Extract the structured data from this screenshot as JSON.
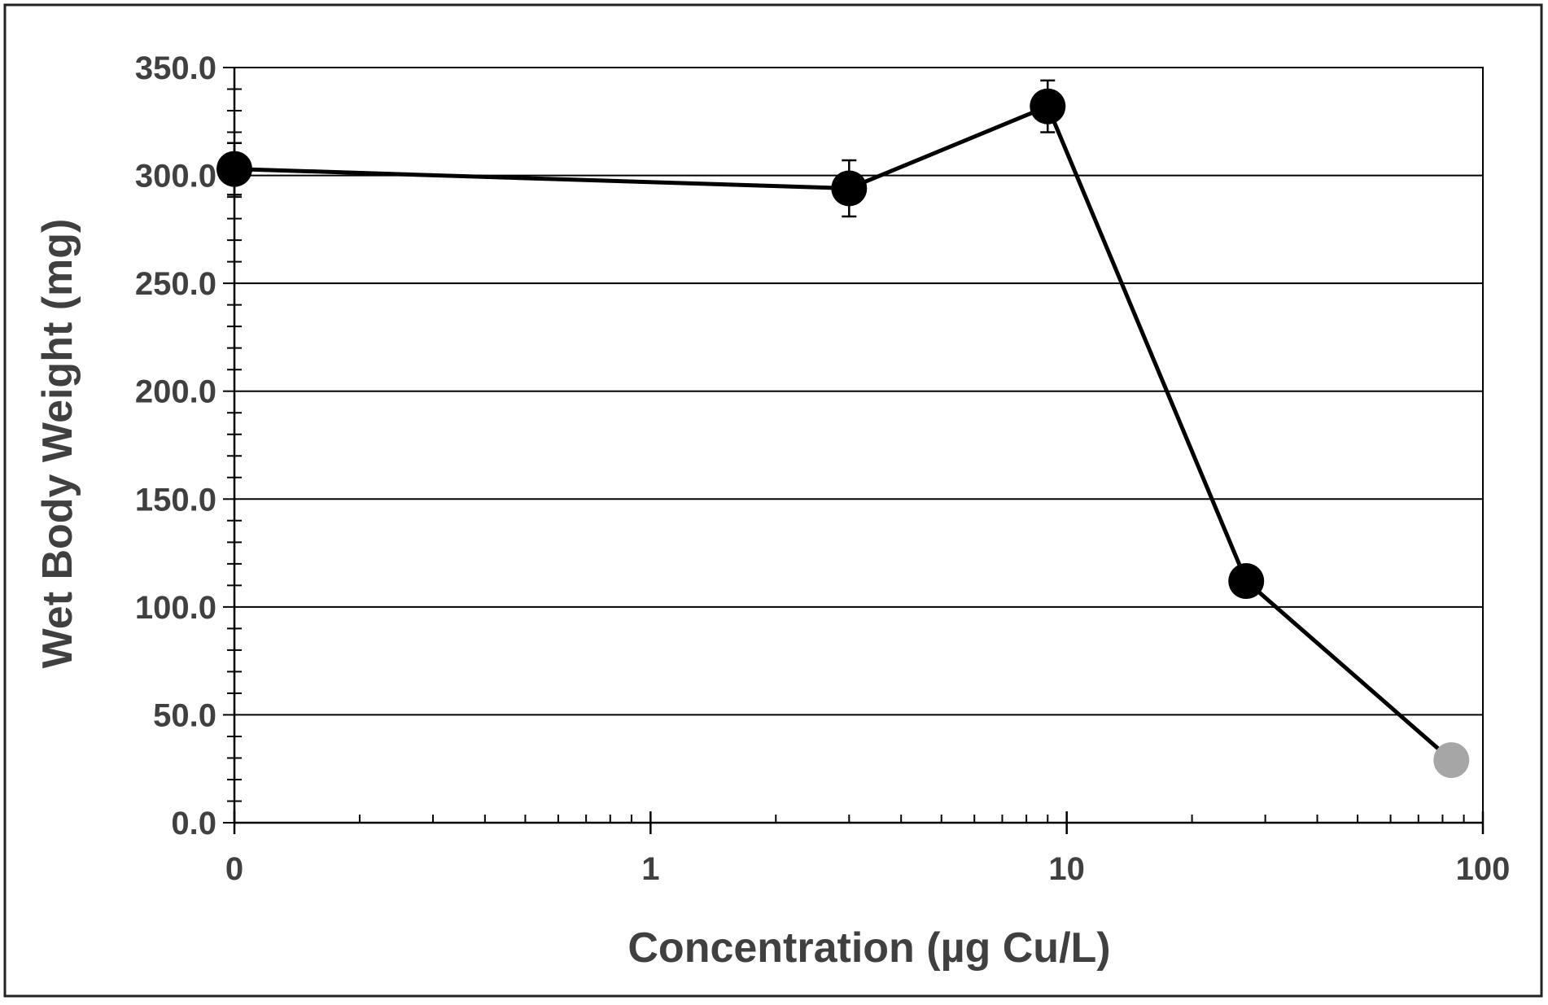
{
  "chart_data": {
    "type": "scatter",
    "title": "",
    "xlabel": "Concentration (µg Cu/L)",
    "ylabel": "Wet Body Weight (mg)",
    "x_scale": "log",
    "xlim": [
      0.1,
      100
    ],
    "ylim": [
      0,
      350
    ],
    "x_tick_values": [
      0.1,
      1,
      10,
      100
    ],
    "x_tick_labels": [
      "0",
      "1",
      "10",
      "100"
    ],
    "y_tick_values": [
      0,
      50,
      100,
      150,
      200,
      250,
      300,
      350
    ],
    "y_tick_labels": [
      "0.0",
      "50.0",
      "100.0",
      "150.0",
      "200.0",
      "250.0",
      "300.0",
      "350.0"
    ],
    "grid": "horizontal",
    "legend": "none",
    "series": [
      {
        "x": [
          0.1,
          3,
          9,
          27,
          84
        ],
        "y": [
          303,
          294,
          332,
          112,
          29
        ],
        "error": [
          12,
          13,
          12,
          0,
          0
        ],
        "marker_colors": [
          "#000000",
          "#000000",
          "#000000",
          "#000000",
          "#a6a6a6"
        ],
        "line_color": "#000000"
      }
    ]
  }
}
